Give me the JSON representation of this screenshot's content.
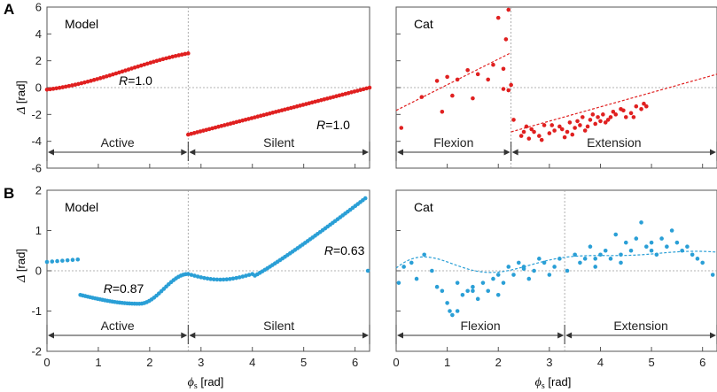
{
  "panels": [
    {
      "letter": "A"
    },
    {
      "letter": "B"
    }
  ],
  "ylabel": {
    "symbol": "Δ",
    "unit": " [rad]"
  },
  "xlabel": {
    "symbol": "ϕ",
    "sub": "s",
    "unit": " [rad]"
  },
  "chart_data": [
    {
      "id": "A-model",
      "type": "scatter",
      "title": "Model",
      "color": "#e02020",
      "xlim": [
        0,
        6.283
      ],
      "ylim": [
        -6,
        6
      ],
      "xticks": [],
      "yticks": [
        6,
        4,
        2,
        0,
        -2,
        -4,
        -6
      ],
      "phase_boundary": 2.75,
      "phase_labels": [
        "Active",
        "Silent"
      ],
      "annotations": [
        {
          "text": "R=1.0",
          "x": 1.4,
          "y": 0.2
        },
        {
          "text": "R=1.0",
          "x": 5.25,
          "y": -3.1
        }
      ],
      "series": [
        {
          "name": "Active",
          "gen": "modelA1"
        },
        {
          "name": "Silent",
          "gen": "modelA2"
        }
      ]
    },
    {
      "id": "A-cat",
      "type": "scatter",
      "title": "Cat",
      "color": "#e02020",
      "xlim": [
        0,
        6.283
      ],
      "ylim": [
        -6,
        6
      ],
      "xticks": [],
      "yticks": [],
      "phase_boundary": 2.25,
      "phase_labels": [
        "Flexion",
        "Extension"
      ],
      "fit_lines": [
        {
          "x": [
            0,
            2.25
          ],
          "y": [
            -1.7,
            2.6
          ]
        },
        {
          "x": [
            2.25,
            6.283
          ],
          "y": [
            -3.3,
            1.0
          ]
        }
      ],
      "points": [
        [
          0.1,
          -3.0
        ],
        [
          0.5,
          -0.7
        ],
        [
          0.8,
          0.5
        ],
        [
          0.9,
          -1.8
        ],
        [
          1.0,
          0.8
        ],
        [
          1.1,
          -0.6
        ],
        [
          1.2,
          0.6
        ],
        [
          1.4,
          1.3
        ],
        [
          1.5,
          -0.8
        ],
        [
          1.6,
          1.0
        ],
        [
          1.8,
          0.6
        ],
        [
          1.9,
          1.7
        ],
        [
          2.0,
          5.2
        ],
        [
          2.1,
          1.4
        ],
        [
          2.15,
          3.6
        ],
        [
          2.2,
          5.8
        ],
        [
          2.2,
          -0.2
        ],
        [
          2.25,
          0.2
        ],
        [
          2.1,
          -0.1
        ],
        [
          2.3,
          -2.4
        ],
        [
          2.5,
          -3.3
        ],
        [
          2.6,
          -3.8
        ],
        [
          2.7,
          -3.3
        ],
        [
          2.8,
          -3.6
        ],
        [
          2.9,
          -2.8
        ],
        [
          3.0,
          -3.4
        ],
        [
          3.1,
          -3.2
        ],
        [
          3.2,
          -2.9
        ],
        [
          3.3,
          -3.7
        ],
        [
          3.4,
          -2.6
        ],
        [
          3.5,
          -3.0
        ],
        [
          3.6,
          -2.8
        ],
        [
          3.7,
          -3.2
        ],
        [
          3.8,
          -2.4
        ],
        [
          3.9,
          -2.7
        ],
        [
          4.0,
          -2.5
        ],
        [
          4.1,
          -2.6
        ],
        [
          4.2,
          -2.2
        ],
        [
          4.3,
          -2.0
        ],
        [
          4.4,
          -1.6
        ],
        [
          4.5,
          -2.2
        ],
        [
          4.6,
          -1.9
        ],
        [
          4.7,
          -1.4
        ],
        [
          4.8,
          -1.6
        ],
        [
          4.9,
          -1.4
        ],
        [
          3.35,
          -3.3
        ],
        [
          3.55,
          -2.5
        ],
        [
          3.75,
          -2.9
        ],
        [
          3.95,
          -2.2
        ],
        [
          4.15,
          -2.4
        ],
        [
          2.45,
          -3.6
        ],
        [
          2.65,
          -3.1
        ],
        [
          2.85,
          -3.9
        ],
        [
          3.05,
          -2.8
        ],
        [
          3.25,
          -3.1
        ],
        [
          3.45,
          -3.5
        ],
        [
          3.65,
          -2.2
        ],
        [
          3.85,
          -2.0
        ],
        [
          4.05,
          -2.0
        ],
        [
          4.25,
          -1.8
        ],
        [
          4.45,
          -1.7
        ],
        [
          4.65,
          -2.2
        ],
        [
          4.85,
          -1.2
        ],
        [
          2.55,
          -2.9
        ]
      ],
      "series": [
        {
          "name": "Cat",
          "gen": "catA"
        }
      ]
    },
    {
      "id": "B-model",
      "type": "scatter",
      "title": "Model",
      "color": "#2a9fd6",
      "xlim": [
        0,
        6.283
      ],
      "ylim": [
        -2,
        2
      ],
      "xticks": [
        0,
        1,
        2,
        3,
        4,
        5,
        6
      ],
      "yticks": [
        2,
        1,
        0,
        -1,
        -2
      ],
      "phase_boundary": 2.75,
      "phase_labels": [
        "Active",
        "Silent"
      ],
      "annotations": [
        {
          "text": "R=0.87",
          "x": 1.1,
          "y": -0.55
        },
        {
          "text": "R=0.63",
          "x": 5.4,
          "y": 0.4
        }
      ],
      "series": [
        {
          "name": "Model",
          "gen": "modelB"
        }
      ]
    },
    {
      "id": "B-cat",
      "type": "scatter",
      "title": "Cat",
      "color": "#2a9fd6",
      "xlim": [
        0,
        6.283
      ],
      "ylim": [
        -2,
        2
      ],
      "xticks": [
        0,
        1,
        2,
        3,
        4,
        5,
        6
      ],
      "yticks": [],
      "phase_boundary": 3.3,
      "phase_labels": [
        "Flexion",
        "Extension"
      ],
      "points": [
        [
          0.05,
          -0.3
        ],
        [
          0.15,
          0.1
        ],
        [
          0.3,
          0.2
        ],
        [
          0.4,
          -0.2
        ],
        [
          0.55,
          0.4
        ],
        [
          0.7,
          0.0
        ],
        [
          0.8,
          -0.4
        ],
        [
          0.9,
          -0.5
        ],
        [
          1.0,
          -0.8
        ],
        [
          1.05,
          -1.0
        ],
        [
          1.1,
          -1.1
        ],
        [
          1.2,
          -1.0
        ],
        [
          1.3,
          -0.6
        ],
        [
          1.4,
          -0.5
        ],
        [
          1.5,
          -0.4
        ],
        [
          1.6,
          -0.7
        ],
        [
          1.7,
          -0.3
        ],
        [
          1.8,
          -0.5
        ],
        [
          1.9,
          -0.2
        ],
        [
          2.0,
          -0.1
        ],
        [
          2.1,
          -0.3
        ],
        [
          2.2,
          0.1
        ],
        [
          2.3,
          -0.1
        ],
        [
          2.4,
          0.2
        ],
        [
          2.5,
          0.1
        ],
        [
          2.6,
          -0.2
        ],
        [
          2.7,
          0.0
        ],
        [
          2.8,
          0.3
        ],
        [
          2.9,
          0.2
        ],
        [
          3.0,
          -0.1
        ],
        [
          3.1,
          0.1
        ],
        [
          3.2,
          0.3
        ],
        [
          3.35,
          0.0
        ],
        [
          3.5,
          0.4
        ],
        [
          3.6,
          0.2
        ],
        [
          3.7,
          0.3
        ],
        [
          3.8,
          0.6
        ],
        [
          3.9,
          0.1
        ],
        [
          4.0,
          0.4
        ],
        [
          4.1,
          0.5
        ],
        [
          4.2,
          0.3
        ],
        [
          4.3,
          0.9
        ],
        [
          4.4,
          0.4
        ],
        [
          4.5,
          0.7
        ],
        [
          4.6,
          0.5
        ],
        [
          4.7,
          0.8
        ],
        [
          4.8,
          1.2
        ],
        [
          4.9,
          0.6
        ],
        [
          5.0,
          0.7
        ],
        [
          5.1,
          0.4
        ],
        [
          5.2,
          0.8
        ],
        [
          5.3,
          0.6
        ],
        [
          5.4,
          1.0
        ],
        [
          5.5,
          0.7
        ],
        [
          5.6,
          0.5
        ],
        [
          5.7,
          0.6
        ],
        [
          5.8,
          0.4
        ],
        [
          5.9,
          0.3
        ],
        [
          6.0,
          0.2
        ],
        [
          6.2,
          -0.1
        ],
        [
          1.2,
          -0.3
        ],
        [
          1.5,
          -0.5
        ],
        [
          2.0,
          -0.6
        ],
        [
          2.5,
          0.05
        ],
        [
          3.9,
          0.3
        ],
        [
          4.4,
          0.2
        ],
        [
          5.0,
          0.5
        ]
      ],
      "fit_curve": {
        "gen": "catBfit"
      },
      "series": [
        {
          "name": "Cat",
          "gen": "catB"
        }
      ]
    }
  ]
}
